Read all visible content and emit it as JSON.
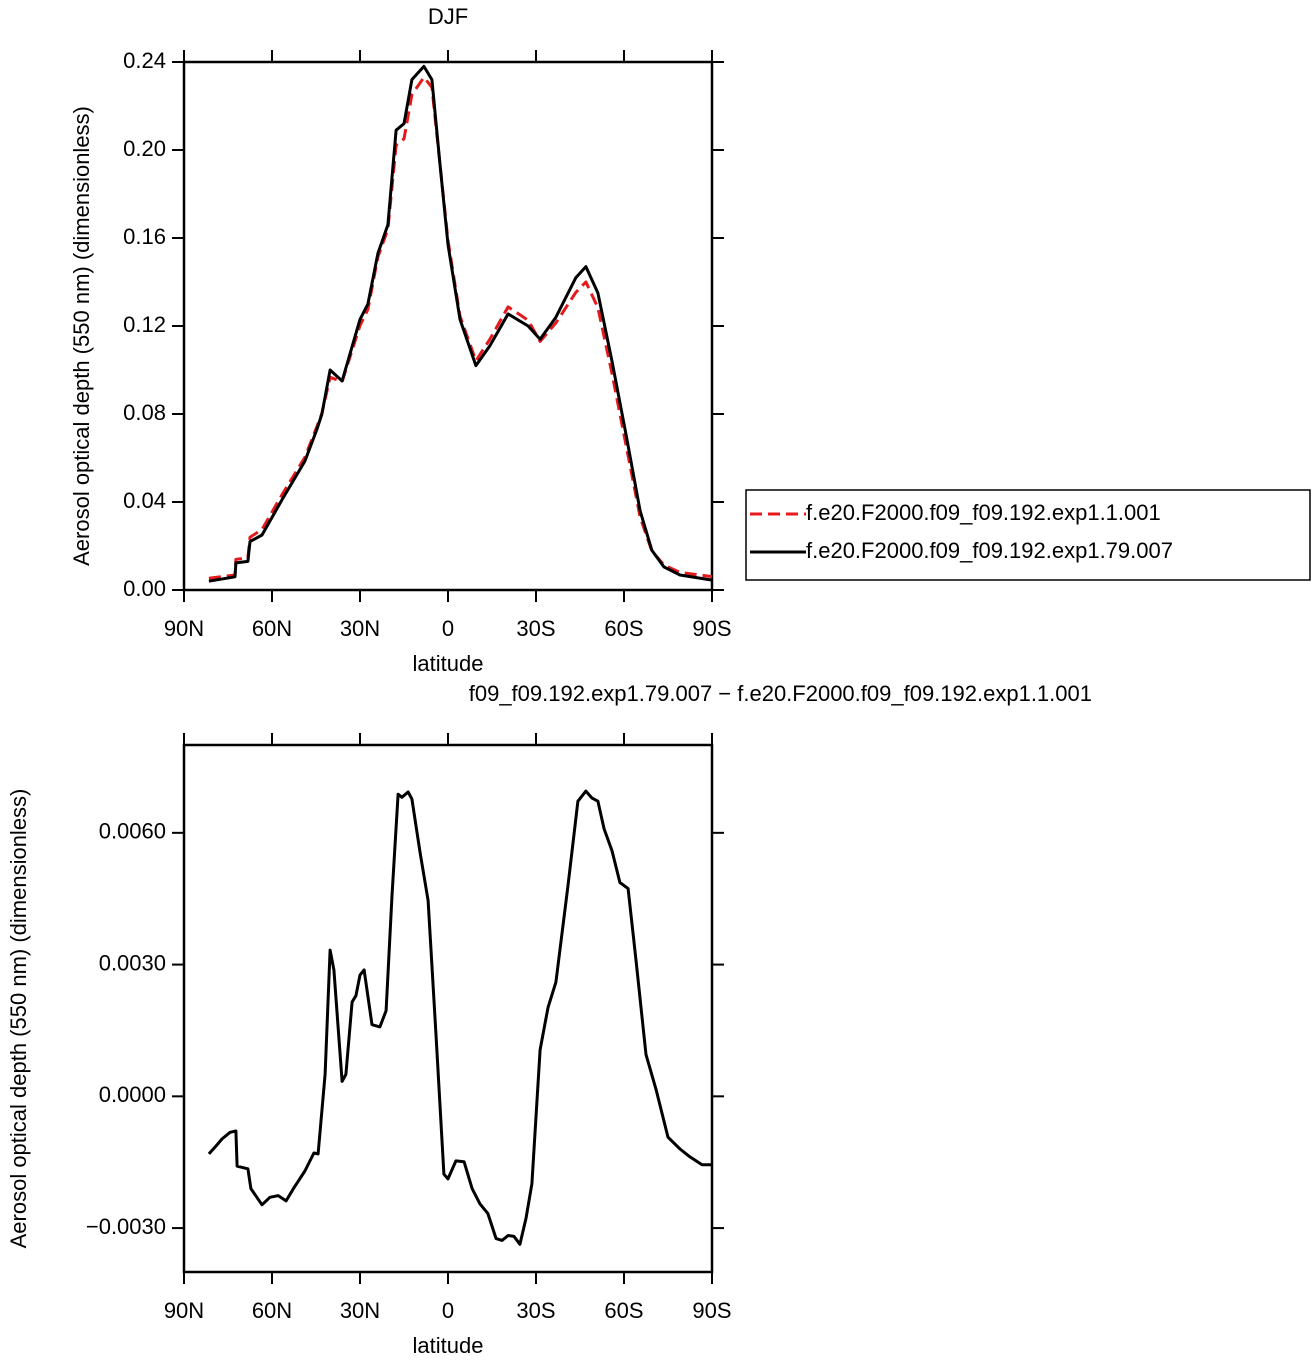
{
  "chart_data": [
    {
      "type": "line",
      "title": "DJF",
      "x_label": "latitude",
      "y_label": "Aerosol optical depth (550 nm) (dimensionless)",
      "xlim": [
        90,
        -90
      ],
      "xticks": [
        {
          "value": 90,
          "label": "90N"
        },
        {
          "value": 60,
          "label": "60N"
        },
        {
          "value": 30,
          "label": "30N"
        },
        0,
        {
          "value": -30,
          "label": "30S"
        },
        {
          "value": -60,
          "label": "60S"
        },
        {
          "value": -90,
          "label": "90S"
        }
      ],
      "ylim": [
        0,
        0.24
      ],
      "yticks": [
        {
          "value": 0,
          "label": "0.00"
        },
        0.04,
        0.08,
        0.12,
        0.16,
        {
          "value": 0.2,
          "label": "0.20"
        },
        0.24
      ],
      "legend": "right",
      "x": [
        81.5,
        72.6,
        72.3,
        68.2,
        67.5,
        63.4,
        56.6,
        48.8,
        44.7,
        43,
        40.2,
        36.1,
        30,
        27.3,
        23.9,
        20.5,
        17.7,
        15,
        12.3,
        8.2,
        5.5,
        2.7,
        0,
        -4.1,
        -9.5,
        -14.3,
        -20.5,
        -27.3,
        -31.4,
        -36.8,
        -43.6,
        -47,
        -51.1,
        -55.9,
        -60.7,
        -65.5,
        -69.5,
        -73.6,
        -79.1,
        -90
      ],
      "series": [
        {
          "name": "f.e20.F2000.f09_f09.192.exp1.1.001",
          "color": "#e41a1c",
          "dashed": true,
          "values": [
            0.0053,
            0.0068,
            0.0139,
            0.0147,
            0.024,
            0.0275,
            0.0433,
            0.0603,
            0.0743,
            0.0803,
            0.0967,
            0.0947,
            0.1202,
            0.1275,
            0.1514,
            0.164,
            0.2022,
            0.2051,
            0.2252,
            0.233,
            0.2285,
            0.193,
            0.1589,
            0.1245,
            0.1042,
            0.114,
            0.1287,
            0.1226,
            0.113,
            0.1214,
            0.1353,
            0.14,
            0.1283,
            0.0984,
            0.0657,
            0.0332,
            0.0176,
            0.0114,
            0.008,
            0.0061
          ]
        },
        {
          "name": "f.e20.F2000.f09_f09.192.exp1.79.007",
          "color": "#000000",
          "dashed": false,
          "values": [
            0.004,
            0.006,
            0.0123,
            0.013,
            0.022,
            0.025,
            0.041,
            0.0586,
            0.073,
            0.08,
            0.1,
            0.095,
            0.123,
            0.13,
            0.153,
            0.166,
            0.209,
            0.212,
            0.232,
            0.238,
            0.232,
            0.193,
            0.157,
            0.123,
            0.102,
            0.111,
            0.1255,
            0.12,
            0.114,
            0.124,
            0.142,
            0.147,
            0.135,
            0.104,
            0.0705,
            0.036,
            0.018,
            0.0105,
            0.0068,
            0.0045
          ]
        }
      ]
    },
    {
      "type": "line",
      "title": "f09_f09.192.exp1.79.007 − f.e20.F2000.f09_f09.192.exp1.1.001",
      "x_label": "latitude",
      "y_label": "Aerosol optical depth (550 nm) (dimensionless)",
      "xlim": [
        90,
        -90
      ],
      "xticks": [
        {
          "value": 90,
          "label": "90N"
        },
        {
          "value": 60,
          "label": "60N"
        },
        {
          "value": 30,
          "label": "30N"
        },
        0,
        {
          "value": -30,
          "label": "30S"
        },
        {
          "value": -60,
          "label": "60S"
        },
        {
          "value": -90,
          "label": "90S"
        }
      ],
      "ylim": [
        -0.004,
        0.008
      ],
      "yticks": [
        {
          "value": -0.003,
          "label": "−0.0030"
        },
        {
          "value": 0,
          "label": "0.0000"
        },
        {
          "value": 0.003,
          "label": "0.0030"
        },
        {
          "value": 0.006,
          "label": "0.0060"
        }
      ],
      "x": [
        81.5,
        79.1,
        77.0,
        74.3,
        72.3,
        71.9,
        68.2,
        67.2,
        63.4,
        60.7,
        57.9,
        55.2,
        52.5,
        48.8,
        45.7,
        44.3,
        41.9,
        40.2,
        38.9,
        36.1,
        34.8,
        32.7,
        31.4,
        30.0,
        28.6,
        25.9,
        23.2,
        21.1,
        19.1,
        17.0,
        15.7,
        13.6,
        12.3,
        9.5,
        8.2,
        6.8,
        4.1,
        1.4,
        0,
        -2.7,
        -5.5,
        -8.2,
        -10.9,
        -13.6,
        -16.4,
        -18.4,
        -20.5,
        -22.5,
        -24.5,
        -26.6,
        -28.6,
        -31.4,
        -34.1,
        -36.8,
        -40.9,
        -44.3,
        -47.0,
        -49.1,
        -51.1,
        -53.2,
        -55.9,
        -58.6,
        -61.4,
        -64.1,
        -67.5,
        -70.9,
        -75.0,
        -79.1,
        -82.5,
        -86.6,
        -90
      ],
      "series": [
        {
          "color": "#000000",
          "dashed": false,
          "values": [
            -0.00131,
            -0.00113,
            -0.00097,
            -0.00082,
            -0.00079,
            -0.00159,
            -0.00165,
            -0.0021,
            -0.00247,
            -0.0023,
            -0.00226,
            -0.00238,
            -0.00208,
            -0.0017,
            -0.00129,
            -0.00131,
            0.0005,
            0.00333,
            0.00288,
            0.00034,
            0.0005,
            0.00215,
            0.00229,
            0.00276,
            0.00288,
            0.00163,
            0.00158,
            0.00195,
            0.00457,
            0.00688,
            0.00681,
            0.00693,
            0.00677,
            0.00555,
            0.00503,
            0.00446,
            0.0014,
            -0.00177,
            -0.00188,
            -0.00147,
            -0.00149,
            -0.0021,
            -0.00245,
            -0.00267,
            -0.00324,
            -0.00328,
            -0.00317,
            -0.00319,
            -0.00337,
            -0.00278,
            -0.00199,
            0.00106,
            0.00202,
            0.0026,
            0.0048,
            0.00672,
            0.00695,
            0.00679,
            0.00672,
            0.00609,
            0.00559,
            0.00487,
            0.00473,
            0.0031,
            0.00095,
            0.00016,
            -0.00093,
            -0.0012,
            -0.00138,
            -0.00156,
            -0.00156
          ]
        }
      ]
    }
  ]
}
